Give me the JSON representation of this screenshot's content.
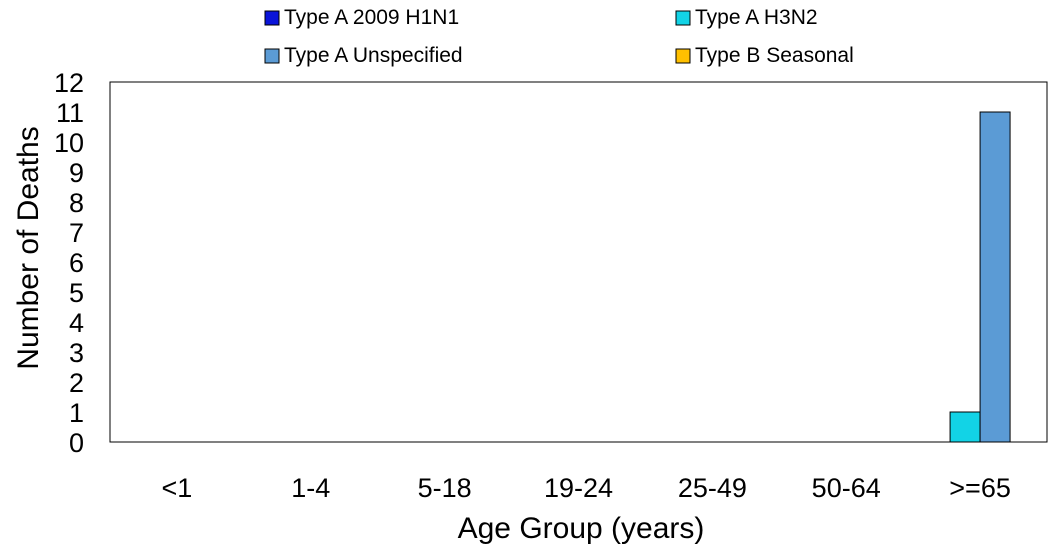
{
  "chart_data": {
    "type": "bar",
    "title": "",
    "xlabel": "Age Group (years)",
    "ylabel": "Number of Deaths",
    "categories": [
      "<1",
      "1-4",
      "5-18",
      "19-24",
      "25-49",
      "50-64",
      ">=65"
    ],
    "ylim": [
      0,
      12
    ],
    "yticks": [
      "0",
      "1",
      "2",
      "3",
      "4",
      "5",
      "6",
      "7",
      "8",
      "9",
      "10",
      "11",
      "12"
    ],
    "grid": false,
    "legend_position": "top",
    "series": [
      {
        "name": "Type A 2009 H1N1",
        "color": "#0a14d9",
        "values": [
          0,
          0,
          0,
          0,
          0,
          0,
          0
        ]
      },
      {
        "name": "Type A H3N2",
        "color": "#12d3e6",
        "values": [
          0,
          0,
          0,
          0,
          0,
          0,
          1
        ]
      },
      {
        "name": "Type A Unspecified",
        "color": "#5b9bd5",
        "values": [
          0,
          0,
          0,
          0,
          0,
          0,
          11
        ]
      },
      {
        "name": "Type B Seasonal",
        "color": "#ffc000",
        "values": [
          0,
          0,
          0,
          0,
          0,
          0,
          0
        ]
      }
    ]
  }
}
